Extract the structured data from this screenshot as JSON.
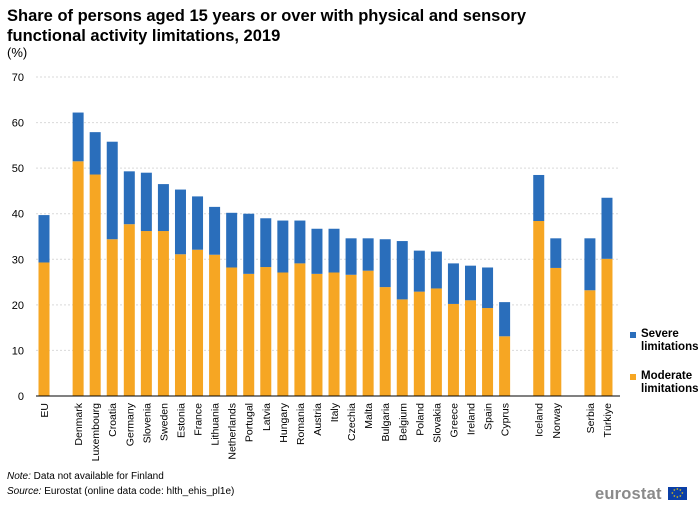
{
  "title": "Share of persons aged 15 years or over with physical and sensory functional activity limitations, 2019",
  "unit_label": "(%)",
  "legend": {
    "severe": "Severe limitations",
    "moderate": "Moderate limitations"
  },
  "colors": {
    "severe": "#2a6ebb",
    "moderate": "#f6a623",
    "grid": "#d9d9d9"
  },
  "footer": {
    "note_label": "Note:",
    "note_text": " Data not available for Finland",
    "source_label": "Source:",
    "source_text": " Eurostat (online data code: hlth_ehis_pl1e)"
  },
  "logo_text": "eurostat",
  "chart_data": {
    "type": "bar",
    "stacked": true,
    "title": "Share of persons aged 15 years or over with physical and sensory functional activity limitations, 2019",
    "ylabel": "(%)",
    "ylim": [
      0,
      70
    ],
    "yticks": [
      0,
      10,
      20,
      30,
      40,
      50,
      60,
      70
    ],
    "grid": true,
    "legend_position": "right",
    "categories": [
      "EU",
      "Denmark",
      "Luxembourg",
      "Croatia",
      "Germany",
      "Slovenia",
      "Sweden",
      "Estonia",
      "France",
      "Lithuania",
      "Netherlands",
      "Portugal",
      "Latvia",
      "Hungary",
      "Romania",
      "Austria",
      "Italy",
      "Czechia",
      "Malta",
      "Bulgaria",
      "Belgium",
      "Poland",
      "Slovakia",
      "Greece",
      "Ireland",
      "Spain",
      "Cyprus",
      "Iceland",
      "Norway",
      "Serbia",
      "Türkiye"
    ],
    "groups": [
      1,
      26,
      2,
      2
    ],
    "series": [
      {
        "name": "Moderate limitations",
        "values": [
          29.3,
          51.5,
          48.6,
          34.4,
          37.7,
          36.2,
          36.2,
          31.1,
          32.1,
          31.0,
          28.2,
          26.8,
          28.3,
          27.1,
          29.1,
          26.8,
          27.1,
          26.6,
          27.5,
          23.9,
          21.2,
          22.9,
          23.6,
          20.2,
          21.0,
          19.3,
          13.1,
          38.4,
          28.1,
          23.2,
          30.1
        ]
      },
      {
        "name": "Severe limitations",
        "values": [
          10.4,
          10.7,
          9.3,
          21.4,
          11.6,
          12.8,
          10.3,
          14.2,
          11.7,
          10.5,
          12.0,
          13.2,
          10.7,
          11.4,
          9.4,
          9.9,
          9.6,
          8.0,
          7.1,
          10.5,
          12.8,
          9.0,
          8.1,
          8.9,
          7.6,
          8.9,
          7.5,
          10.1,
          6.5,
          11.4,
          13.4
        ]
      }
    ]
  }
}
